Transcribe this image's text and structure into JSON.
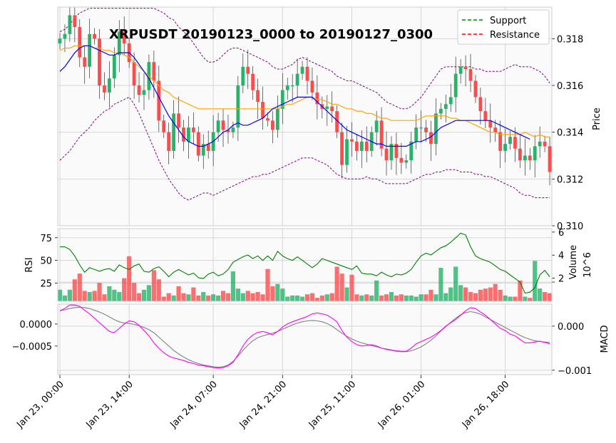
{
  "chart_data": {
    "type": "candlestick",
    "title": "XRPUSDT 20190123_0000 to 20190127_0300",
    "x_tick_labels": [
      "Jan 23, 00:00",
      "Jan 23, 14:00",
      "Jan 24, 07:00",
      "Jan 24, 21:00",
      "Jan 25, 11:00",
      "Jan 26, 01:00",
      "Jan 26, 18:00"
    ],
    "x_tick_index": [
      0,
      14,
      31,
      45,
      59,
      73,
      90
    ],
    "bar_count": 100,
    "price_panel": {
      "ylabel": "Price",
      "yticks": [
        0.31,
        0.312,
        0.314,
        0.316,
        0.318
      ],
      "ytick_labels": [
        "0.310",
        "0.312",
        "0.314",
        "0.316",
        "0.318"
      ],
      "ylim": [
        0.31,
        0.31935
      ],
      "legend_position": "top-right",
      "legend": [
        {
          "label": "Support",
          "color": "#008000",
          "style": "dashed"
        },
        {
          "label": "Resistance",
          "color": "#ff0000",
          "style": "dashed"
        }
      ],
      "close": [
        0.318,
        0.3182,
        0.319,
        0.3185,
        0.3172,
        0.3168,
        0.3182,
        0.318,
        0.316,
        0.3157,
        0.3163,
        0.3173,
        0.3183,
        0.3178,
        0.317,
        0.316,
        0.3156,
        0.3158,
        0.317,
        0.3162,
        0.3145,
        0.314,
        0.3132,
        0.3148,
        0.3142,
        0.3136,
        0.3142,
        0.314,
        0.313,
        0.3135,
        0.3132,
        0.314,
        0.3145,
        0.3141,
        0.314,
        0.3142,
        0.316,
        0.3168,
        0.3165,
        0.3158,
        0.3153,
        0.3146,
        0.3145,
        0.3141,
        0.315,
        0.3158,
        0.316,
        0.316,
        0.3165,
        0.3168,
        0.3162,
        0.3157,
        0.3152,
        0.315,
        0.3151,
        0.3149,
        0.314,
        0.3126,
        0.3137,
        0.3136,
        0.3132,
        0.3136,
        0.3132,
        0.314,
        0.3145,
        0.3133,
        0.3128,
        0.3135,
        0.3129,
        0.3127,
        0.3128,
        0.3136,
        0.3142,
        0.3142,
        0.314,
        0.3135,
        0.3148,
        0.315,
        0.3152,
        0.3155,
        0.3165,
        0.3168,
        0.3167,
        0.3162,
        0.3155,
        0.3149,
        0.3145,
        0.3142,
        0.314,
        0.3132,
        0.3135,
        0.3138,
        0.3133,
        0.3128,
        0.313,
        0.3128,
        0.3134,
        0.3136,
        0.3134,
        0.3123
      ],
      "open": [
        0.3178,
        0.318,
        0.3182,
        0.319,
        0.3185,
        0.3172,
        0.3168,
        0.3182,
        0.318,
        0.316,
        0.3157,
        0.3163,
        0.3173,
        0.3183,
        0.3178,
        0.317,
        0.316,
        0.3156,
        0.3158,
        0.317,
        0.3162,
        0.3145,
        0.314,
        0.3132,
        0.3148,
        0.3142,
        0.3136,
        0.3142,
        0.314,
        0.313,
        0.3135,
        0.3132,
        0.314,
        0.3145,
        0.3141,
        0.314,
        0.3142,
        0.316,
        0.3168,
        0.3165,
        0.3158,
        0.3153,
        0.3146,
        0.3145,
        0.3141,
        0.315,
        0.3158,
        0.316,
        0.316,
        0.3165,
        0.3168,
        0.3162,
        0.3157,
        0.3152,
        0.315,
        0.3151,
        0.3149,
        0.314,
        0.3126,
        0.3137,
        0.3136,
        0.3132,
        0.3136,
        0.3132,
        0.314,
        0.3145,
        0.3133,
        0.3128,
        0.3135,
        0.3129,
        0.3127,
        0.3128,
        0.3136,
        0.3142,
        0.3142,
        0.314,
        0.3135,
        0.3148,
        0.315,
        0.3152,
        0.3155,
        0.3165,
        0.3168,
        0.3167,
        0.3162,
        0.3155,
        0.3149,
        0.3145,
        0.3142,
        0.314,
        0.3132,
        0.3135,
        0.3138,
        0.3133,
        0.3128,
        0.313,
        0.3128,
        0.3134,
        0.3136,
        0.3134
      ],
      "sma_blue": [
        0.3166,
        0.3168,
        0.3171,
        0.3174,
        0.3176,
        0.3177,
        0.3177,
        0.3176,
        0.3175,
        0.3174,
        0.3173,
        0.3173,
        0.3174,
        0.3174,
        0.3174,
        0.3172,
        0.3169,
        0.3166,
        0.3163,
        0.3159,
        0.3155,
        0.3151,
        0.3147,
        0.3144,
        0.3141,
        0.3138,
        0.3136,
        0.3135,
        0.3134,
        0.3134,
        0.3135,
        0.3136,
        0.3138,
        0.314,
        0.3141,
        0.3143,
        0.3144,
        0.3143,
        0.3143,
        0.3144,
        0.3145,
        0.3146,
        0.3148,
        0.315,
        0.3151,
        0.3152,
        0.3153,
        0.3154,
        0.3155,
        0.3155,
        0.3155,
        0.3155,
        0.3153,
        0.3151,
        0.3149,
        0.3147,
        0.3145,
        0.3143,
        0.3141,
        0.314,
        0.3139,
        0.3138,
        0.3137,
        0.3136,
        0.3135,
        0.3135,
        0.3134,
        0.3134,
        0.3134,
        0.3134,
        0.3134,
        0.3135,
        0.3136,
        0.3136,
        0.3137,
        0.3138,
        0.314,
        0.3142,
        0.3143,
        0.3144,
        0.3145,
        0.3145,
        0.3145,
        0.3145,
        0.3145,
        0.3145,
        0.3145,
        0.3145,
        0.3144,
        0.3143,
        0.3142,
        0.3141,
        0.314,
        0.3139,
        0.3138,
        0.3137
      ],
      "sma_orange": [
        0.3175,
        0.3176,
        0.3176,
        0.3177,
        0.3177,
        0.3177,
        0.3177,
        0.3176,
        0.3176,
        0.3175,
        0.3175,
        0.3174,
        0.3174,
        0.3173,
        0.3172,
        0.317,
        0.3168,
        0.3166,
        0.3164,
        0.3162,
        0.316,
        0.3158,
        0.3157,
        0.3155,
        0.3154,
        0.3153,
        0.3152,
        0.3151,
        0.315,
        0.315,
        0.315,
        0.315,
        0.315,
        0.315,
        0.315,
        0.315,
        0.315,
        0.315,
        0.315,
        0.315,
        0.315,
        0.315,
        0.315,
        0.315,
        0.315,
        0.3151,
        0.3152,
        0.3152,
        0.3153,
        0.3154,
        0.3155,
        0.3155,
        0.3154,
        0.3154,
        0.3153,
        0.3152,
        0.3152,
        0.3151,
        0.315,
        0.315,
        0.3149,
        0.3149,
        0.3148,
        0.3148,
        0.3147,
        0.3146,
        0.3146,
        0.3145,
        0.3145,
        0.3145,
        0.3145,
        0.3145,
        0.3145,
        0.3146,
        0.3147,
        0.3147,
        0.3147,
        0.3147,
        0.3147,
        0.3146,
        0.3146,
        0.3145,
        0.3145,
        0.3144,
        0.3143,
        0.3142,
        0.3141,
        0.314,
        0.314,
        0.3139,
        0.3139,
        0.3139,
        0.3139,
        0.3139,
        0.314,
        0.3139,
        0.3138,
        0.3139,
        0.3138,
        0.3138
      ],
      "bb_upper": [
        0.3183,
        0.3184,
        0.3186,
        0.3189,
        0.3191,
        0.3192,
        0.3193,
        0.3193,
        0.3193,
        0.3193,
        0.3193,
        0.3193,
        0.3193,
        0.3193,
        0.3193,
        0.3193,
        0.3193,
        0.3193,
        0.3193,
        0.3193,
        0.3192,
        0.3191,
        0.3189,
        0.3188,
        0.3185,
        0.3183,
        0.3181,
        0.3178,
        0.3175,
        0.3172,
        0.317,
        0.317,
        0.3171,
        0.3173,
        0.3175,
        0.3176,
        0.3176,
        0.3175,
        0.3174,
        0.3173,
        0.3172,
        0.3171,
        0.317,
        0.3168,
        0.3167,
        0.3167,
        0.3168,
        0.3169,
        0.3171,
        0.3172,
        0.3171,
        0.317,
        0.3169,
        0.3168,
        0.3167,
        0.3166,
        0.3164,
        0.3163,
        0.3162,
        0.3162,
        0.3161,
        0.316,
        0.3159,
        0.3158,
        0.3157,
        0.3155,
        0.3153,
        0.3152,
        0.3151,
        0.315,
        0.315,
        0.3151,
        0.3153,
        0.3155,
        0.3158,
        0.3161,
        0.3164,
        0.3167,
        0.3168,
        0.3168,
        0.3168,
        0.3168,
        0.3168,
        0.3168,
        0.3167,
        0.3167,
        0.3166,
        0.3166,
        0.3166,
        0.3166,
        0.3167,
        0.3168,
        0.3169,
        0.3168,
        0.3168,
        0.3168,
        0.3167,
        0.3166,
        0.3164,
        0.3161
      ],
      "bb_lower": [
        0.3128,
        0.313,
        0.3132,
        0.3135,
        0.3138,
        0.314,
        0.3142,
        0.3145,
        0.3147,
        0.3149,
        0.315,
        0.3152,
        0.3153,
        0.3154,
        0.3155,
        0.3152,
        0.3148,
        0.3143,
        0.3138,
        0.3133,
        0.3128,
        0.3124,
        0.312,
        0.3117,
        0.3114,
        0.3112,
        0.3111,
        0.3112,
        0.3113,
        0.3114,
        0.3114,
        0.3113,
        0.3114,
        0.3115,
        0.3116,
        0.3117,
        0.3118,
        0.3119,
        0.312,
        0.3121,
        0.3121,
        0.3122,
        0.3122,
        0.3123,
        0.3124,
        0.3125,
        0.3126,
        0.3127,
        0.3128,
        0.3129,
        0.3129,
        0.3129,
        0.3128,
        0.3127,
        0.3126,
        0.3124,
        0.3122,
        0.3121,
        0.312,
        0.312,
        0.312,
        0.312,
        0.3121,
        0.312,
        0.312,
        0.3119,
        0.3118,
        0.3118,
        0.3118,
        0.3118,
        0.3118,
        0.3119,
        0.312,
        0.3121,
        0.3122,
        0.3122,
        0.3123,
        0.3123,
        0.3124,
        0.3124,
        0.3124,
        0.3123,
        0.3123,
        0.3123,
        0.3122,
        0.3122,
        0.3121,
        0.3121,
        0.312,
        0.3119,
        0.3118,
        0.3117,
        0.3116,
        0.3114,
        0.3113,
        0.3113,
        0.3112,
        0.3112,
        0.3112,
        0.3112
      ]
    },
    "volume_panel": {
      "ylabel": "Volume",
      "offset_label": "10^6",
      "yticks": [
        2,
        4,
        6
      ],
      "ytick_labels": [
        "2",
        "4",
        "6"
      ],
      "ylim": [
        0,
        6.3
      ],
      "values": [
        1.0,
        0.5,
        1.0,
        1.9,
        2.4,
        0.9,
        0.8,
        0.9,
        1.6,
        0.6,
        1.3,
        1.0,
        0.8,
        2.0,
        3.9,
        1.6,
        0.7,
        1.0,
        1.4,
        2.7,
        1.9,
        0.4,
        0.7,
        0.5,
        1.3,
        0.7,
        0.6,
        1.2,
        0.5,
        0.8,
        0.5,
        0.6,
        0.5,
        0.9,
        0.7,
        2.6,
        1.1,
        0.7,
        0.9,
        0.7,
        0.8,
        0.6,
        2.8,
        1.3,
        1.5,
        1.1,
        0.4,
        0.5,
        0.5,
        0.4,
        0.6,
        0.7,
        0.3,
        0.5,
        0.6,
        0.7,
        3.0,
        2.4,
        1.2,
        2.3,
        0.6,
        0.5,
        0.6,
        0.5,
        1.8,
        0.5,
        0.6,
        0.8,
        0.5,
        0.6,
        0.5,
        0.5,
        0.4,
        0.6,
        0.6,
        1.0,
        0.6,
        2.9,
        0.7,
        1.2,
        3.0,
        1.4,
        1.2,
        0.8,
        0.7,
        1.0,
        1.1,
        1.2,
        1.5,
        1.0,
        0.5,
        0.4,
        0.4,
        1.8,
        0.4,
        0.3,
        3.5,
        1.1,
        0.8,
        0.7
      ],
      "colors": {
        "up": "#26b36a",
        "down": "#ff4b4b"
      }
    },
    "rsi_panel": {
      "ylabel": "RSI",
      "yticks": [
        25,
        50,
        75
      ],
      "ytick_labels": [
        "25",
        "50",
        "75"
      ],
      "ylim": [
        5,
        85
      ],
      "values": [
        65,
        65,
        62,
        55,
        45,
        37,
        42,
        40,
        38,
        40,
        41,
        38,
        45,
        42,
        40,
        44,
        46,
        38,
        37,
        41,
        43,
        38,
        32,
        37,
        40,
        37,
        34,
        36,
        31,
        30,
        35,
        37,
        33,
        35,
        40,
        48,
        51,
        54,
        56,
        52,
        55,
        50,
        55,
        50,
        60,
        55,
        52,
        50,
        54,
        50,
        46,
        42,
        46,
        52,
        50,
        48,
        46,
        44,
        42,
        40,
        44,
        36,
        35,
        35,
        33,
        37,
        34,
        32,
        35,
        34,
        36,
        40,
        48,
        55,
        58,
        56,
        60,
        64,
        66,
        70,
        75,
        80,
        78,
        65,
        55,
        52,
        50,
        48,
        44,
        40,
        38,
        34,
        30,
        26,
        14,
        15,
        20,
        34,
        39,
        32
      ]
    },
    "macd_panel": {
      "ylabel": "MACD",
      "yticks": [
        -0.001,
        0.0,
        0.001
      ],
      "ytick_labels": [
        "−0.001",
        "0.000",
        ""
      ],
      "left_ytick_labels": [
        "−0.0005",
        "0.0000"
      ],
      "ylim": [
        -0.0011,
        0.0005
      ],
      "macd": [
        0.00035,
        0.0004,
        0.00048,
        0.00048,
        0.00045,
        0.00036,
        0.00028,
        0.00018,
        8e-05,
        -2e-05,
        -0.00012,
        -0.00015,
        -5e-05,
        5e-05,
        0.00012,
        0.0001,
        2e-05,
        -0.0001,
        -0.00022,
        -0.00038,
        -0.0005,
        -0.0006,
        -0.00068,
        -0.00072,
        -0.00075,
        -0.00078,
        -0.00082,
        -0.00085,
        -0.00088,
        -0.0009,
        -0.00092,
        -0.00094,
        -0.00095,
        -0.00094,
        -0.0009,
        -0.00082,
        -0.00065,
        -0.00045,
        -0.0003,
        -0.0002,
        -0.00014,
        -0.00012,
        -0.00015,
        -0.0002,
        -0.00012,
        -2e-05,
        5e-05,
        0.0001,
        0.00014,
        0.00018,
        0.00022,
        0.00028,
        0.0003,
        0.00028,
        0.00025,
        0.00018,
        0.0001,
        -0.0001,
        -0.00025,
        -0.00035,
        -0.00042,
        -0.00045,
        -0.00044,
        -0.00042,
        -0.00045,
        -0.0005,
        -0.00052,
        -0.00054,
        -0.00056,
        -0.00057,
        -0.00057,
        -0.0005,
        -0.0004,
        -0.00035,
        -0.0003,
        -0.00025,
        -0.00018,
        -0.0001,
        0.0,
        8e-05,
        0.00015,
        0.00025,
        0.00035,
        0.00042,
        0.0004,
        0.00032,
        0.00025,
        0.00015,
        5e-05,
        -5e-05,
        -0.0001,
        -0.00018,
        -0.00022,
        -0.0003,
        -0.00038,
        -0.00038,
        -0.00036,
        -0.00034,
        -0.00037,
        -0.0004
      ],
      "signal": [
        0.00035,
        0.00037,
        0.0004,
        0.00042,
        0.00043,
        0.00042,
        0.0004,
        0.00036,
        0.00032,
        0.00027,
        0.00021,
        0.00015,
        0.0001,
        7e-05,
        6e-05,
        4e-05,
        1e-05,
        -3e-05,
        -8e-05,
        -0.00015,
        -0.00025,
        -0.00035,
        -0.00045,
        -0.00055,
        -0.00063,
        -0.0007,
        -0.00076,
        -0.00081,
        -0.00085,
        -0.00088,
        -0.0009,
        -0.00092,
        -0.00093,
        -0.00092,
        -0.00088,
        -0.0008,
        -0.00068,
        -0.00055,
        -0.00043,
        -0.00033,
        -0.00026,
        -0.00022,
        -0.00019,
        -0.00016,
        -0.00012,
        -7e-05,
        -2e-05,
        3e-05,
        7e-05,
        0.0001,
        0.00012,
        0.00013,
        0.00012,
        0.0001,
        6e-05,
        0.0,
        -8e-05,
        -0.00016,
        -0.00023,
        -0.00029,
        -0.00034,
        -0.00038,
        -0.00041,
        -0.00044,
        -0.00047,
        -0.0005,
        -0.00053,
        -0.00055,
        -0.00057,
        -0.00058,
        -0.00058,
        -0.00056,
        -0.00052,
        -0.00047,
        -0.0004,
        -0.00032,
        -0.00022,
        -0.00011,
        -1e-05,
        9e-05,
        0.00018,
        0.00026,
        0.00031,
        0.00033,
        0.00031,
        0.00027,
        0.00021,
        0.00015,
        9e-05,
        3e-05,
        -3e-05,
        -9e-05,
        -0.00015,
        -0.00021,
        -0.00026,
        -0.0003,
        -0.00033,
        -0.00035,
        -0.00036,
        -0.00037
      ],
      "colors": {
        "macd": "#ff00ff",
        "signal": "#808080"
      }
    },
    "colors": {
      "up": "#26b36a",
      "down": "#ff4b4b",
      "sma_blue": "#0000ff",
      "sma_orange": "#ffa500",
      "bollinger": "#800080",
      "rsi": "#008000"
    }
  }
}
